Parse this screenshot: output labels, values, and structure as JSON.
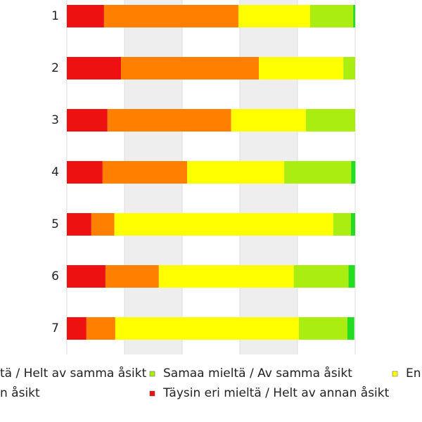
{
  "chart_data": {
    "type": "stacked_barh",
    "categories": [
      "1",
      "2",
      "3",
      "4",
      "5",
      "6",
      "7"
    ],
    "series": [
      {
        "name": "Täysin eri mieltä / Helt av annan åsikt",
        "color": "#ee1111",
        "values": [
          12.9,
          18.8,
          14.1,
          12.4,
          8.5,
          13.4,
          6.8
        ]
      },
      {
        "name": "n åsikt",
        "color": "#ff8000",
        "values": [
          46.6,
          47.8,
          42.9,
          29.3,
          8.0,
          18.5,
          10.0
        ]
      },
      {
        "name": "En",
        "color": "#ffff00",
        "values": [
          24.9,
          29.3,
          25.9,
          33.7,
          75.9,
          46.8,
          63.7
        ]
      },
      {
        "name": "Samaa mieltä / Av samma åsikt",
        "color": "#aaee11",
        "values": [
          14.9,
          4.1,
          17.1,
          23.2,
          6.1,
          19.0,
          16.8
        ]
      },
      {
        "name": "tä / Helt av samma åsikt",
        "color": "#22dd22",
        "values": [
          0.7,
          0,
          0,
          1.5,
          1.5,
          2.2,
          2.4
        ]
      }
    ],
    "xlim": [
      0,
      100
    ],
    "xticks": [
      0,
      20,
      40,
      60,
      80,
      100
    ],
    "grid": true
  }
}
